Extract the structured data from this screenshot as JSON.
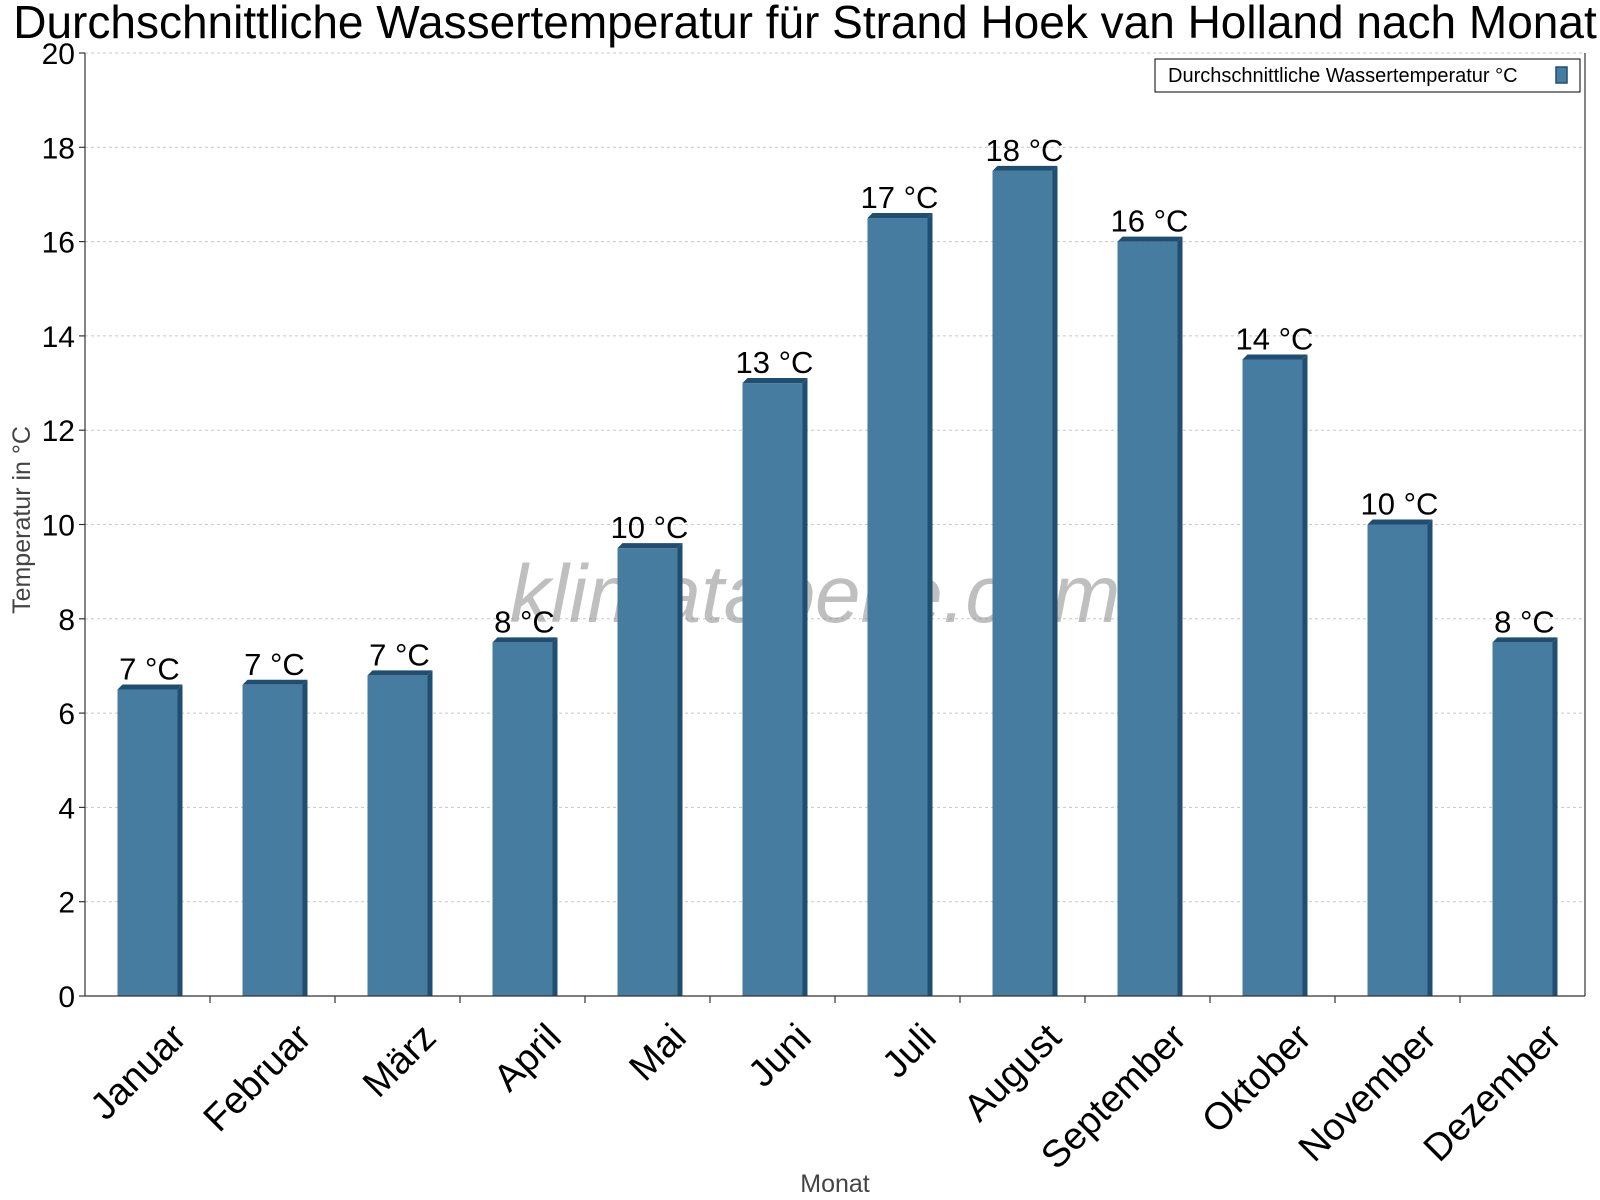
{
  "chart_data": {
    "type": "bar",
    "title": "Durchschnittliche Wassertemperatur für Strand Hoek van Holland nach Monat",
    "xlabel": "Monat",
    "ylabel": "Temperatur in °C",
    "categories": [
      "Januar",
      "Februar",
      "März",
      "April",
      "Mai",
      "Juni",
      "Juli",
      "August",
      "September",
      "Oktober",
      "November",
      "Dezember"
    ],
    "series": [
      {
        "name": "Durchschnittliche Wassertemperatur °C",
        "values": [
          6.5,
          6.6,
          6.8,
          7.5,
          9.5,
          13.0,
          16.5,
          17.5,
          16.0,
          13.5,
          10.0,
          7.5
        ],
        "labels": [
          "7 °C",
          "7 °C",
          "7 °C",
          "8 °C",
          "10 °C",
          "13 °C",
          "17 °C",
          "18 °C",
          "16 °C",
          "14 °C",
          "10 °C",
          "8 °C"
        ]
      }
    ],
    "ylim": [
      0,
      20
    ],
    "yticks": [
      "0",
      "2",
      "4",
      "6",
      "8",
      "10",
      "12",
      "14",
      "16",
      "18",
      "20"
    ],
    "grid": true,
    "legend_position": "top-right",
    "colors": {
      "bar": "#467c9f",
      "bar_side": "#1f4e70",
      "bar_top": "#1f4e70"
    }
  },
  "watermark": "klimatabelle.com"
}
